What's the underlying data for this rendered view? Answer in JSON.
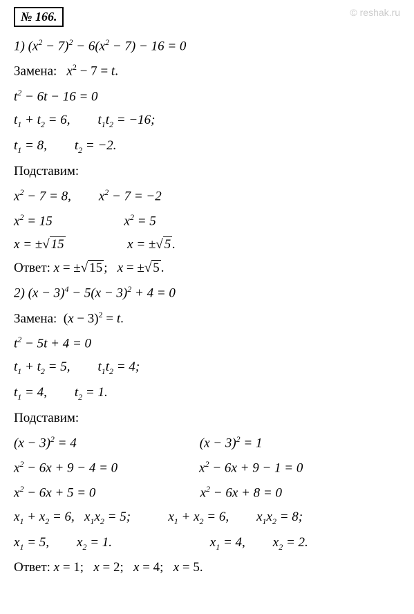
{
  "badge": "№ 166.",
  "watermark": "© reshak.ru",
  "wm_bg": "reshak.ru",
  "lines": {
    "l1": "1) (x² − 7)² − 6(x² − 7) − 16 = 0",
    "l2": "Замена:   x² − 7 = t.",
    "l3": "t² − 6t − 16 = 0",
    "l4a": "t₁ + t₂ = 6,",
    "l4b": "t₁t₂ = −16;",
    "l5a": "t₁ = 8,",
    "l5b": "t₂ = −2.",
    "l6": "Подставим:",
    "l7a": "x² − 7 = 8,",
    "l7b": "x² − 7 = −2",
    "l8a": "x² = 15",
    "l8b": "x² = 5",
    "l9a": "x = ±√15",
    "l9b": "x = ±√5.",
    "l10": "Ответ: x = ±√15;   x = ±√5.",
    "l11": "2) (x − 3)⁴ − 5(x − 3)² + 4 = 0",
    "l12": "Замена:  (x − 3)² = t.",
    "l13": "t² − 5t + 4 = 0",
    "l14a": "t₁ + t₂ = 5,",
    "l14b": "t₁t₂ = 4;",
    "l15a": "t₁ = 4,",
    "l15b": "t₂ = 1.",
    "l16": "Подставим:",
    "l17a": "(x − 3)² = 4",
    "l17b": "(x − 3)² = 1",
    "l18a": "x² − 6x + 9 − 4 = 0",
    "l18b": "x² − 6x + 9 − 1 = 0",
    "l19a": "x² − 6x + 5 = 0",
    "l19b": "x² − 6x + 8 = 0",
    "l20a": "x₁ + x₂ = 6,",
    "l20b": "x₁x₂ = 5;",
    "l20c": "x₁ + x₂ = 6,",
    "l20d": "x₁x₂ = 8;",
    "l21a": "x₁ = 5,",
    "l21b": "x₂ = 1.",
    "l21c": "x₁ = 4,",
    "l21d": "x₂ = 2.",
    "l22": "Ответ: x = 1;   x = 2;   x = 4;   x = 5."
  },
  "colors": {
    "text": "#000000",
    "bg": "#ffffff",
    "watermark": "#cccccc",
    "wm_bg": "#f0f0f0"
  }
}
